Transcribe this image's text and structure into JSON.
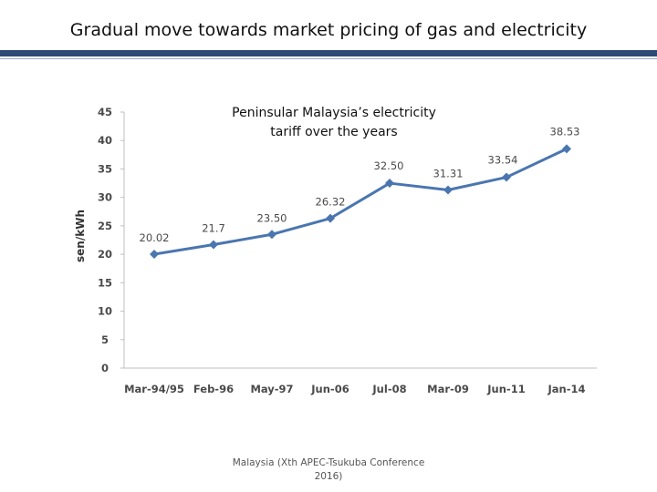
{
  "slide": {
    "title": "Gradual move towards market pricing of gas and electricity",
    "footer": "Malaysia (Xth APEC-Tsukuba Conference 2016)"
  },
  "colors": {
    "header_rule": "#2e4a77",
    "series_line": "#4a76b0",
    "axis": "#bfbfbf"
  },
  "chart_data": {
    "type": "line",
    "title": "Peninsular Malaysia’s electricity tariff over the years",
    "xlabel": "",
    "ylabel": "sen/kWh",
    "ylim": [
      0,
      45
    ],
    "yticks": [
      0,
      5,
      10,
      15,
      20,
      25,
      30,
      35,
      40,
      45
    ],
    "grid": false,
    "categories": [
      "Mar-94/95",
      "Feb-96",
      "May-97",
      "Jun-06",
      "Jul-08",
      "Mar-09",
      "Jun-11",
      "Jan-14"
    ],
    "series": [
      {
        "values": [
          20.02,
          21.7,
          23.5,
          26.32,
          32.5,
          31.31,
          33.54,
          38.53
        ],
        "labels": [
          "20.02",
          "21.7",
          "23.50",
          "26.32",
          "32.50",
          "31.31",
          "33.54",
          "38.53"
        ]
      }
    ]
  }
}
